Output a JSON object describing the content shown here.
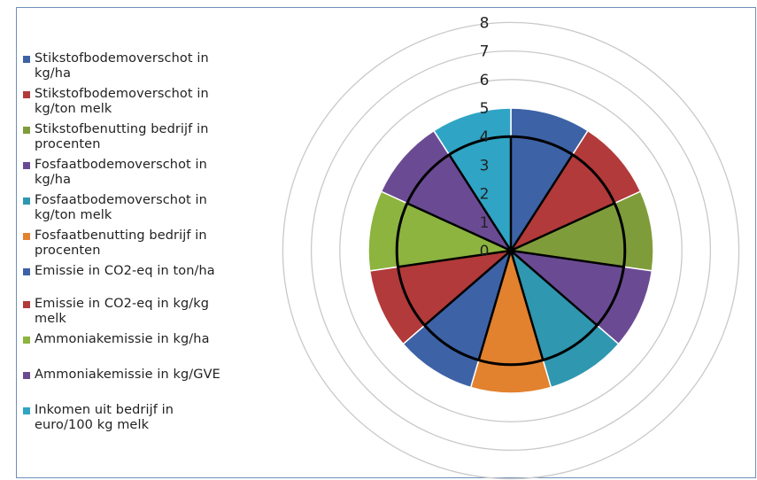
{
  "chart_data": {
    "type": "polar-area",
    "title": "",
    "radial_axis": {
      "min": 0,
      "max": 8,
      "ticks": [
        "0",
        "1",
        "2",
        "3",
        "4",
        "5",
        "6",
        "7",
        "8"
      ],
      "grid": true
    },
    "reference_ring": 4,
    "legend_position": "left",
    "series": [
      {
        "name": "Stikstofbodemoverschot in kg/ha",
        "value": 5.0,
        "color": "#3d62a6"
      },
      {
        "name": "Stikstofbodemoverschot in kg/ton melk",
        "value": 5.0,
        "color": "#b23a3a"
      },
      {
        "name": "Stikstofbenutting bedrijf in procenten",
        "value": 5.0,
        "color": "#7f9c3a"
      },
      {
        "name": "Fosfaatbodemoverschot in kg/ha",
        "value": 5.0,
        "color": "#6a4b93"
      },
      {
        "name": "Fosfaatbodemoverschot in kg/ton melk",
        "value": 5.0,
        "color": "#2f97b0"
      },
      {
        "name": "Fosfaatbenutting bedrijf in procenten",
        "value": 5.0,
        "color": "#e2812e"
      },
      {
        "name": "Emissie in CO2-eq in ton/ha",
        "value": 5.0,
        "color": "#3d62a6"
      },
      {
        "name": "Emissie in CO2-eq in kg/kg melk",
        "value": 5.0,
        "color": "#b23a3a"
      },
      {
        "name": "Ammoniakemissie in kg/ha",
        "value": 5.0,
        "color": "#8cb43e"
      },
      {
        "name": "Ammoniakemissie in kg/GVE",
        "value": 5.0,
        "color": "#6a4b93"
      },
      {
        "name": "Inkomen uit bedrijf in euro/100 kg melk",
        "value": 5.0,
        "color": "#2fa4c4"
      }
    ]
  },
  "legend": {
    "items": [
      {
        "line1": "Stikstofbodemoverschot in",
        "line2": "kg/ha",
        "color": "#3d62a6"
      },
      {
        "line1": "Stikstofbodemoverschot in",
        "line2": "kg/ton melk",
        "color": "#b23a3a"
      },
      {
        "line1": "Stikstofbenutting bedrijf in",
        "line2": "procenten",
        "color": "#7f9c3a"
      },
      {
        "line1": "Fosfaatbodemoverschot in",
        "line2": "kg/ha",
        "color": "#6a4b93"
      },
      {
        "line1": "Fosfaatbodemoverschot in",
        "line2": "kg/ton melk",
        "color": "#2f97b0"
      },
      {
        "line1": "Fosfaatbenutting bedrijf in",
        "line2": "procenten",
        "color": "#e2812e"
      },
      {
        "line1": "Emissie in CO2-eq in ton/ha",
        "line2": "",
        "color": "#3d62a6"
      },
      {
        "line1": "Emissie in CO2-eq in kg/kg",
        "line2": "melk",
        "color": "#b23a3a"
      },
      {
        "line1": "Ammoniakemissie in kg/ha",
        "line2": "",
        "color": "#8cb43e"
      },
      {
        "line1": "Ammoniakemissie in kg/GVE",
        "line2": "",
        "color": "#6a4b93"
      },
      {
        "line1": "Inkomen uit bedrijf in",
        "line2": "euro/100 kg melk",
        "color": "#2fa4c4"
      }
    ]
  }
}
